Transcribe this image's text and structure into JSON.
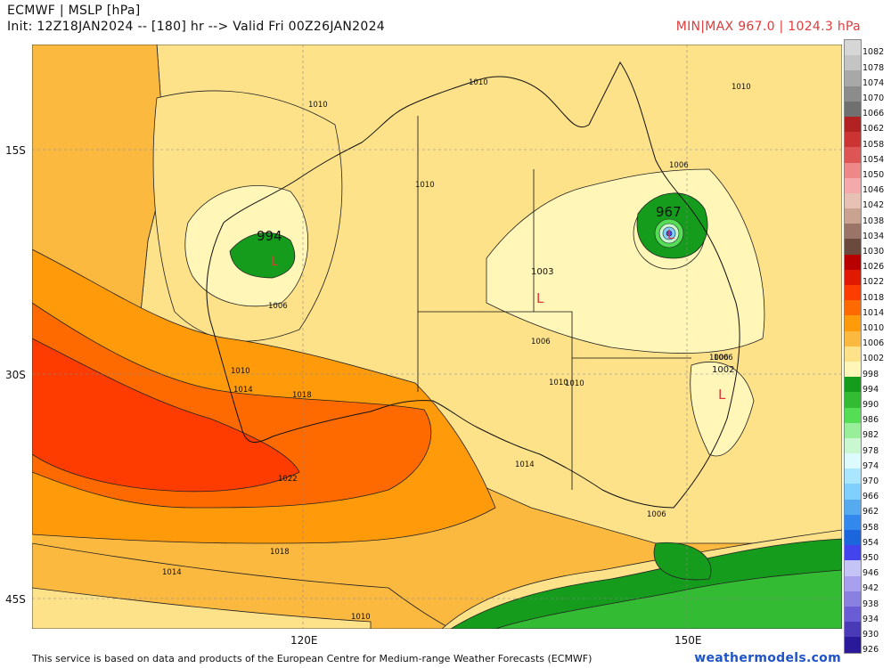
{
  "header": {
    "title": "ECMWF | MSLP [hPa]",
    "subtitle": "Init: 12Z18JAN2024 -- [180] hr --> Valid Fri 00Z26JAN2024",
    "minmax": "MIN|MAX 967.0 | 1024.3 hPa"
  },
  "axes": {
    "lat_labels": [
      "15S",
      "30S",
      "45S"
    ],
    "lon_labels": [
      "120E",
      "150E"
    ]
  },
  "map_labels": {
    "low_west_value": "994",
    "low_east_value": "967",
    "low_marker": "L",
    "inland_value": "1003",
    "east_coast_value": "1002"
  },
  "contour_labels": [
    "1010",
    "1010",
    "1010",
    "1010",
    "1006",
    "1006",
    "1006",
    "1006",
    "1006",
    "1006",
    "1010",
    "1010",
    "1014",
    "1018",
    "1022",
    "1018",
    "1014",
    "1010",
    "1014",
    "1010"
  ],
  "colorbar": {
    "levels": [
      "1082",
      "1078",
      "1074",
      "1070",
      "1066",
      "1062",
      "1058",
      "1054",
      "1050",
      "1046",
      "1042",
      "1038",
      "1034",
      "1030",
      "1026",
      "1022",
      "1018",
      "1014",
      "1010",
      "1006",
      "1002",
      "998",
      "994",
      "990",
      "986",
      "982",
      "978",
      "974",
      "970",
      "966",
      "962",
      "958",
      "954",
      "950",
      "946",
      "942",
      "938",
      "934",
      "930",
      "926"
    ],
    "colors": [
      "#d6d6d6",
      "#c4c4c4",
      "#a8a8a8",
      "#8c8c8c",
      "#707070",
      "#b22222",
      "#cc3333",
      "#dd5555",
      "#ee8888",
      "#f4aaaa",
      "#e7c2b4",
      "#c9a390",
      "#9a7466",
      "#6b4a3e",
      "#b80000",
      "#e01a00",
      "#ff3c00",
      "#ff6a00",
      "#ff9a0a",
      "#fcb940",
      "#fde28a",
      "#fff6b8",
      "#169c1c",
      "#33bb33",
      "#55dd55",
      "#99ee99",
      "#c8f7d0",
      "#ddfaff",
      "#aae6ff",
      "#7fcfff",
      "#55aaf0",
      "#3388ee",
      "#1c66dd",
      "#4444ee",
      "#c4c4f6",
      "#a8a0ee",
      "#8a80e0",
      "#6a5cd4",
      "#4a3ab8",
      "#2a1a9a"
    ]
  },
  "footer": {
    "attribution": "This service is based on data and products of the European Centre for Medium-range Weather Forecasts (ECMWF)",
    "brand": "weathermodels.com"
  }
}
